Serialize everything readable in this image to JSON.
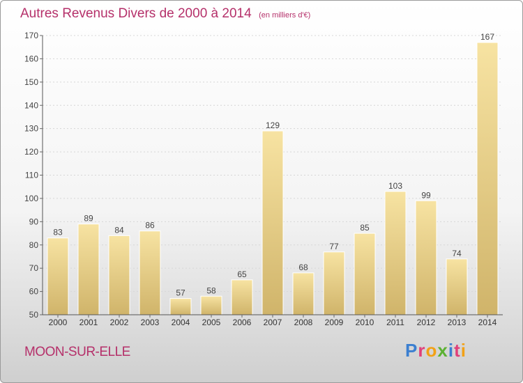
{
  "title": "Autres Revenus Divers de 2000 à 2014",
  "unit_note": "(en milliers d'€)",
  "place_name": "MOON-SUR-ELLE",
  "logo": {
    "letters": [
      "P",
      "r",
      "o",
      "x",
      "i",
      "t",
      "i"
    ],
    "colors": [
      "#3b7fd0",
      "#e0407a",
      "#f2a116",
      "#5bb132",
      "#3b7fd0",
      "#e0407a",
      "#f2a116"
    ]
  },
  "colors": {
    "bar_light": "#f7e3a2",
    "bar_dark": "#d0b46a",
    "title": "#b5306a"
  },
  "chart_data": {
    "type": "bar",
    "categories": [
      "2000",
      "2001",
      "2002",
      "2003",
      "2004",
      "2005",
      "2006",
      "2007",
      "2008",
      "2009",
      "2010",
      "2011",
      "2012",
      "2013",
      "2014"
    ],
    "values": [
      83,
      89,
      84,
      86,
      57,
      58,
      65,
      129,
      68,
      77,
      85,
      103,
      99,
      74,
      167
    ],
    "data_labels": [
      "83",
      "89",
      "84",
      "86",
      "57",
      "58",
      "65",
      "129",
      "68",
      "77",
      "85",
      "103",
      "99",
      "74",
      "167"
    ],
    "yticks": [
      50,
      60,
      70,
      80,
      90,
      100,
      110,
      120,
      130,
      140,
      150,
      160,
      170
    ],
    "ylim": [
      50,
      170
    ],
    "grid": true
  }
}
